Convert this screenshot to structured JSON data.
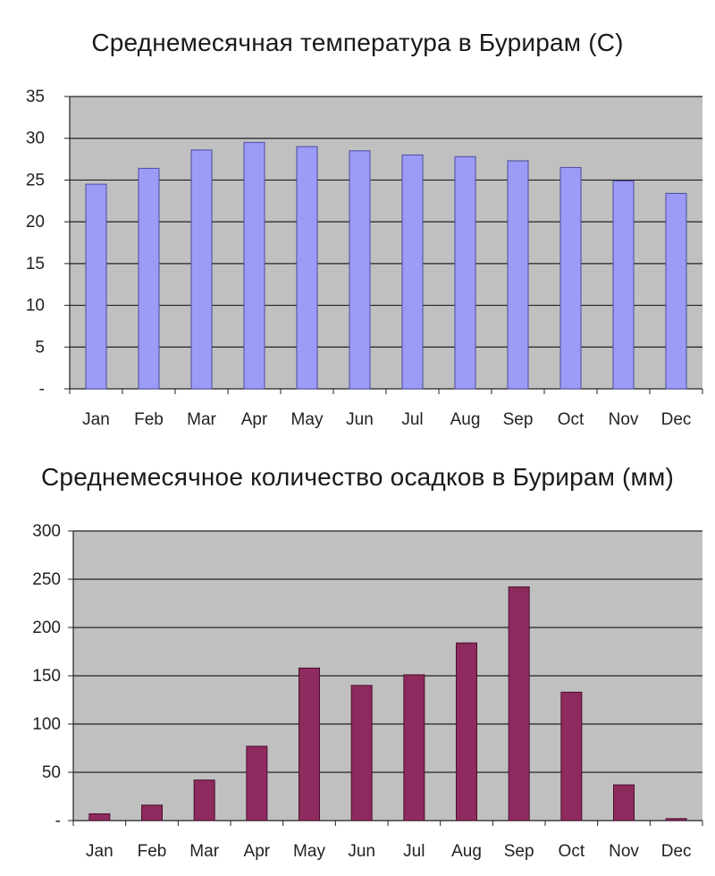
{
  "chart_data": [
    {
      "type": "bar",
      "title": "Среднемесячная температура в Бурирам (С)",
      "categories": [
        "Jan",
        "Feb",
        "Mar",
        "Apr",
        "May",
        "Jun",
        "Jul",
        "Aug",
        "Sep",
        "Oct",
        "Nov",
        "Dec"
      ],
      "values": [
        24.5,
        26.4,
        28.6,
        29.5,
        29,
        28.5,
        28,
        27.8,
        27.3,
        26.5,
        24.9,
        23.4
      ],
      "yticks": [
        "-",
        "5",
        "10",
        "15",
        "20",
        "25",
        "30",
        "35"
      ],
      "ylim": [
        0,
        35
      ],
      "grid": true,
      "colors": {
        "bar": "#9c9cf8",
        "bar_stroke": "#4a4aa0",
        "plot_bg": "#c0c0c0"
      }
    },
    {
      "type": "bar",
      "title": "Среднемесячное количество осадков в Бурирам (мм)",
      "categories": [
        "Jan",
        "Feb",
        "Mar",
        "Apr",
        "May",
        "Jun",
        "Jul",
        "Aug",
        "Sep",
        "Oct",
        "Nov",
        "Dec"
      ],
      "values": [
        7,
        16,
        42,
        77,
        158,
        140,
        151,
        184,
        242,
        133,
        37,
        2
      ],
      "yticks": [
        "-",
        "50",
        "100",
        "150",
        "200",
        "250",
        "300"
      ],
      "ylim": [
        0,
        300
      ],
      "grid": true,
      "colors": {
        "bar": "#8e2a5e",
        "bar_stroke": "#4a0f2e",
        "plot_bg": "#c0c0c0"
      }
    }
  ]
}
